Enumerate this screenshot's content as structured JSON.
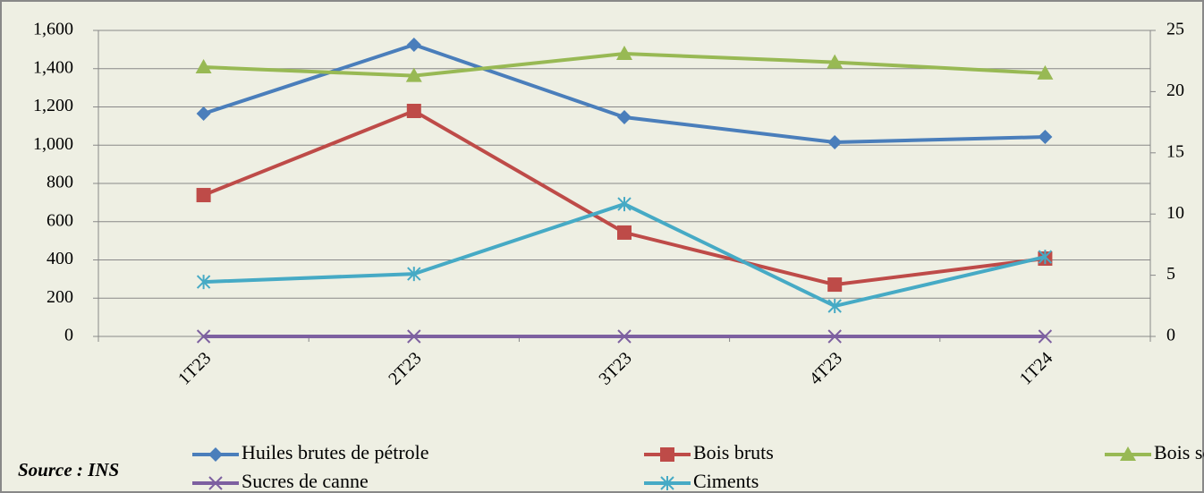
{
  "chart_data": {
    "type": "line",
    "categories": [
      "1T23",
      "2T23",
      "3T23",
      "4T23",
      "1T24"
    ],
    "series": [
      {
        "name": "Huiles brutes de pétrole",
        "color": "#4a7ebb",
        "marker": "diamond",
        "values": [
          1165,
          1525,
          1146,
          1015,
          1043
        ]
      },
      {
        "name": "Bois bruts",
        "color": "#be4b48",
        "marker": "square",
        "values": [
          739,
          1179,
          543,
          271,
          407
        ]
      },
      {
        "name": "Bois sciés",
        "color": "#98b954",
        "marker": "triangle",
        "axis": "y2",
        "values": [
          22.0,
          21.3,
          23.1,
          22.4,
          21.5
        ]
      },
      {
        "name": "Sucres de canne",
        "color": "#7d60a0",
        "marker": "x",
        "values": [
          0,
          0,
          0,
          0,
          0
        ]
      },
      {
        "name": "Ciments",
        "color": "#46aac5",
        "marker": "star",
        "values": [
          285,
          327,
          692,
          159,
          416
        ]
      }
    ],
    "ylim": [
      0,
      1600
    ],
    "yticks": [
      0,
      200,
      400,
      600,
      800,
      {
        "value": 1000,
        "label": "1,000"
      },
      {
        "value": 1200,
        "label": "1,200"
      },
      {
        "value": 1400,
        "label": "1,400"
      },
      {
        "value": 1600,
        "label": "1,600"
      }
    ],
    "y2lim": [
      0,
      25
    ],
    "y2ticks": [
      0,
      5,
      10,
      15,
      20,
      25
    ],
    "grid": true,
    "legend": "bottom",
    "source": "Source : INS"
  }
}
